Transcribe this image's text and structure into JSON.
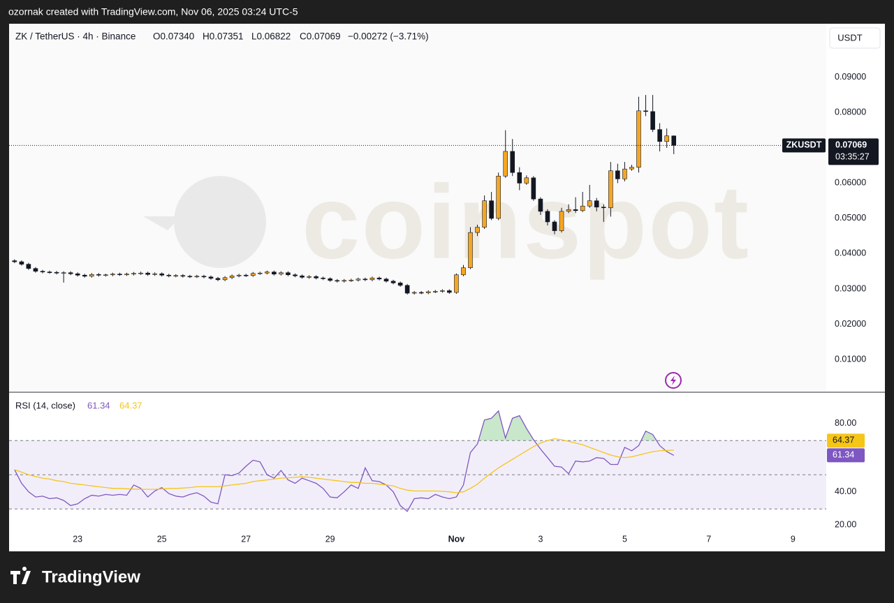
{
  "header": {
    "credit": "ozornak created with TradingView.com, Nov 06, 2025 03:24 UTC-5",
    "symbol": "ZK / TetherUS · 4h · Binance",
    "ohlc": [
      "O0.07340",
      "H0.07351",
      "L0.06822",
      "C0.07069",
      "−0.00272 (−3.71%)"
    ],
    "currency_button": "USDT"
  },
  "watermark": "coinspot",
  "footer": "TradingView",
  "chart_data": [
    {
      "type": "candlestick",
      "symbol_tag": "ZKUSDT",
      "countdown": "03:35:27",
      "up_color": "#f5a623",
      "down_color": "#131722",
      "grid": false,
      "xlim": [
        21.37,
        40.79
      ],
      "xticks": [
        23,
        25,
        27,
        29,
        {
          "value": 32,
          "label": "Nov"
        },
        {
          "value": 34,
          "label": "3"
        },
        {
          "value": 36,
          "label": "5"
        },
        {
          "value": 38,
          "label": "7"
        },
        {
          "value": 40,
          "label": "9"
        }
      ],
      "ylim": [
        0.0011,
        0.1052
      ],
      "yticks": [
        {
          "value": 0.01,
          "label": "0.01000"
        },
        {
          "value": 0.02,
          "label": "0.02000"
        },
        {
          "value": 0.03,
          "label": "0.03000"
        },
        {
          "value": 0.04,
          "label": "0.04000"
        },
        {
          "value": 0.05,
          "label": "0.05000"
        },
        {
          "value": 0.06,
          "label": "0.06000"
        },
        {
          "value": 0.07,
          "label": "0.07000"
        },
        {
          "value": 0.08,
          "label": "0.08000"
        },
        {
          "value": 0.09,
          "label": "0.09000"
        }
      ],
      "x": [
        21.5,
        21.667,
        21.833,
        22,
        22.167,
        22.333,
        22.5,
        22.667,
        22.833,
        23,
        23.167,
        23.333,
        23.5,
        23.667,
        23.833,
        24,
        24.167,
        24.333,
        24.5,
        24.667,
        24.833,
        25,
        25.167,
        25.333,
        25.5,
        25.667,
        25.833,
        26,
        26.167,
        26.333,
        26.5,
        26.667,
        26.833,
        27,
        27.167,
        27.333,
        27.5,
        27.667,
        27.833,
        28,
        28.167,
        28.333,
        28.5,
        28.667,
        28.833,
        29,
        29.167,
        29.333,
        29.5,
        29.667,
        29.833,
        30,
        30.167,
        30.333,
        30.5,
        30.667,
        30.833,
        31,
        31.167,
        31.333,
        31.5,
        31.667,
        31.833,
        32,
        32.167,
        32.333,
        32.5,
        32.667,
        32.833,
        33,
        33.167,
        33.333,
        33.5,
        33.667,
        33.833,
        34,
        34.167,
        34.333,
        34.5,
        34.667,
        34.833,
        35,
        35.167,
        35.333,
        35.5,
        35.667,
        35.833,
        36,
        36.167,
        36.333,
        36.5,
        36.667,
        36.833,
        37,
        37.167
      ],
      "open": [
        0.038,
        0.0377,
        0.037,
        0.0358,
        0.035,
        0.0348,
        0.0347,
        0.0345,
        0.0346,
        0.0343,
        0.0339,
        0.0336,
        0.0341,
        0.0339,
        0.034,
        0.0342,
        0.0341,
        0.0342,
        0.0344,
        0.0345,
        0.0341,
        0.0343,
        0.0339,
        0.0337,
        0.0338,
        0.0336,
        0.0335,
        0.0336,
        0.0334,
        0.033,
        0.0326,
        0.0332,
        0.0337,
        0.0339,
        0.0338,
        0.0344,
        0.0345,
        0.0348,
        0.0342,
        0.0346,
        0.034,
        0.0337,
        0.0333,
        0.0335,
        0.0331,
        0.0329,
        0.0324,
        0.0322,
        0.0324,
        0.0325,
        0.0328,
        0.0326,
        0.0331,
        0.0328,
        0.0322,
        0.0317,
        0.031,
        0.0288,
        0.029,
        0.0289,
        0.0292,
        0.0293,
        0.0295,
        0.029,
        0.034,
        0.036,
        0.046,
        0.0475,
        0.055,
        0.05,
        0.062,
        0.069,
        0.063,
        0.06,
        0.0615,
        0.0555,
        0.052,
        0.049,
        0.0465,
        0.052,
        0.0525,
        0.0522,
        0.0535,
        0.055,
        0.0532,
        0.053,
        0.0635,
        0.0612,
        0.064,
        0.0645,
        0.0805,
        0.0803,
        0.0752,
        0.0718,
        0.0734
      ],
      "high": [
        0.0384,
        0.0381,
        0.0374,
        0.0362,
        0.0354,
        0.0352,
        0.0351,
        0.035,
        0.035,
        0.0347,
        0.0343,
        0.0345,
        0.0345,
        0.0343,
        0.0346,
        0.0346,
        0.0346,
        0.0348,
        0.0349,
        0.0349,
        0.0347,
        0.0347,
        0.0343,
        0.0342,
        0.0342,
        0.034,
        0.034,
        0.034,
        0.0338,
        0.0334,
        0.0336,
        0.0341,
        0.0343,
        0.0343,
        0.0348,
        0.0349,
        0.0352,
        0.0352,
        0.035,
        0.035,
        0.0344,
        0.0341,
        0.0339,
        0.0339,
        0.0335,
        0.0333,
        0.0328,
        0.0328,
        0.0329,
        0.0332,
        0.0332,
        0.0335,
        0.0335,
        0.0332,
        0.0326,
        0.0321,
        0.0314,
        0.0294,
        0.0294,
        0.0296,
        0.0297,
        0.0299,
        0.0299,
        0.0344,
        0.0368,
        0.0475,
        0.0482,
        0.0565,
        0.0575,
        0.063,
        0.075,
        0.0725,
        0.0645,
        0.0622,
        0.062,
        0.056,
        0.0526,
        0.0495,
        0.053,
        0.054,
        0.056,
        0.0575,
        0.0595,
        0.0558,
        0.054,
        0.066,
        0.0655,
        0.066,
        0.0652,
        0.0845,
        0.085,
        0.085,
        0.077,
        0.0755,
        0.07351
      ],
      "low": [
        0.0373,
        0.0366,
        0.0354,
        0.0346,
        0.0344,
        0.0343,
        0.0341,
        0.0318,
        0.0339,
        0.0335,
        0.0332,
        0.0332,
        0.0335,
        0.0335,
        0.0336,
        0.0337,
        0.0337,
        0.0338,
        0.034,
        0.0337,
        0.0337,
        0.0335,
        0.0333,
        0.0333,
        0.0332,
        0.0331,
        0.0331,
        0.033,
        0.0326,
        0.0322,
        0.0322,
        0.0328,
        0.0333,
        0.0334,
        0.0334,
        0.034,
        0.0341,
        0.0338,
        0.0338,
        0.0336,
        0.0333,
        0.0329,
        0.0329,
        0.0327,
        0.0325,
        0.032,
        0.0318,
        0.0318,
        0.032,
        0.0321,
        0.0322,
        0.0322,
        0.0324,
        0.0318,
        0.0313,
        0.0306,
        0.0284,
        0.0284,
        0.0285,
        0.0285,
        0.0288,
        0.0289,
        0.0286,
        0.0286,
        0.0336,
        0.0356,
        0.045,
        0.047,
        0.0495,
        0.0495,
        0.0615,
        0.062,
        0.058,
        0.0595,
        0.055,
        0.051,
        0.048,
        0.0455,
        0.046,
        0.0515,
        0.0515,
        0.0518,
        0.053,
        0.052,
        0.049,
        0.0505,
        0.06,
        0.0605,
        0.0635,
        0.063,
        0.079,
        0.0745,
        0.069,
        0.07,
        0.06822
      ],
      "close": [
        0.0377,
        0.037,
        0.0358,
        0.035,
        0.0348,
        0.0347,
        0.0345,
        0.0346,
        0.0343,
        0.0339,
        0.0336,
        0.0341,
        0.0339,
        0.034,
        0.0342,
        0.0341,
        0.0342,
        0.0344,
        0.0345,
        0.0341,
        0.0343,
        0.0339,
        0.0337,
        0.0338,
        0.0336,
        0.0335,
        0.0336,
        0.0334,
        0.033,
        0.0326,
        0.0332,
        0.0337,
        0.0339,
        0.0338,
        0.0344,
        0.0345,
        0.0348,
        0.0342,
        0.0346,
        0.034,
        0.0337,
        0.0333,
        0.0335,
        0.0331,
        0.0329,
        0.0324,
        0.0322,
        0.0324,
        0.0325,
        0.0328,
        0.0326,
        0.0331,
        0.0328,
        0.0322,
        0.0317,
        0.031,
        0.0288,
        0.029,
        0.0289,
        0.0292,
        0.0293,
        0.0295,
        0.029,
        0.034,
        0.036,
        0.046,
        0.0475,
        0.055,
        0.05,
        0.062,
        0.069,
        0.063,
        0.06,
        0.0615,
        0.0555,
        0.052,
        0.049,
        0.0465,
        0.052,
        0.0525,
        0.0522,
        0.0535,
        0.055,
        0.0532,
        0.053,
        0.0635,
        0.0612,
        0.064,
        0.0645,
        0.0805,
        0.0803,
        0.0752,
        0.0718,
        0.0734,
        0.07069
      ]
    },
    {
      "type": "line",
      "title": "RSI (14, close)",
      "ylim": [
        19.5,
        97
      ],
      "grid": false,
      "yticks": [
        {
          "value": 20,
          "label": "20.00"
        },
        {
          "value": 40,
          "label": "40.00"
        },
        {
          "value": 80,
          "label": "80.00"
        }
      ],
      "levels": [
        70,
        50,
        30
      ],
      "band_color": "#7e57c2",
      "overbought_color": "#4caf50",
      "series": [
        {
          "color": "#7e57c2",
          "values": [
            53,
            45,
            40,
            37,
            37.5,
            36,
            36.5,
            35,
            32,
            33,
            36,
            38,
            37.5,
            38.5,
            38,
            38.5,
            38,
            44,
            42,
            37,
            40.5,
            42.5,
            39,
            37.5,
            37,
            38.5,
            39.5,
            37.5,
            34,
            33,
            50,
            49.5,
            51,
            55,
            58.5,
            57.5,
            50,
            48,
            52.5,
            47,
            45,
            48,
            46.5,
            45,
            42,
            37,
            36.5,
            40,
            44,
            42,
            54,
            46.5,
            46,
            44,
            40,
            32,
            28.6,
            36,
            36.5,
            36,
            38.5,
            37,
            36,
            37,
            44,
            63,
            68,
            82,
            83,
            87.3,
            71.5,
            83,
            84.5,
            77,
            70.5,
            65,
            60,
            55,
            54.5,
            50.6,
            58,
            57.5,
            58,
            60,
            59.5,
            56,
            56,
            66,
            64,
            67,
            75.5,
            73.5,
            67,
            63.5,
            61.34
          ]
        },
        {
          "color": "#f5c518",
          "values": [
            53,
            51.5,
            50,
            49,
            48,
            47.5,
            46.5,
            46,
            45,
            44.5,
            44,
            43.5,
            43,
            42.5,
            42,
            42,
            41.8,
            41.6,
            41.5,
            41.5,
            41.5,
            41.7,
            42,
            42,
            42.2,
            42.5,
            43,
            43,
            43,
            43,
            43.5,
            44,
            44.5,
            45,
            46,
            46.5,
            47,
            47.5,
            48,
            48.2,
            48.5,
            48.8,
            48.5,
            48,
            47.5,
            47,
            46.5,
            46,
            45.5,
            45.5,
            45,
            45,
            44.5,
            44,
            43.5,
            42,
            41,
            40.5,
            40.5,
            40.5,
            40.5,
            40.3,
            40,
            39.5,
            40,
            42,
            44.5,
            48,
            51,
            54,
            56.5,
            59,
            61.5,
            64,
            66.5,
            68.5,
            70,
            71,
            70.5,
            69.5,
            68.5,
            67.5,
            66,
            64.5,
            63,
            61.5,
            60.5,
            60,
            60.5,
            61.5,
            62.5,
            63.5,
            64,
            64.2,
            64.37
          ]
        }
      ]
    }
  ]
}
